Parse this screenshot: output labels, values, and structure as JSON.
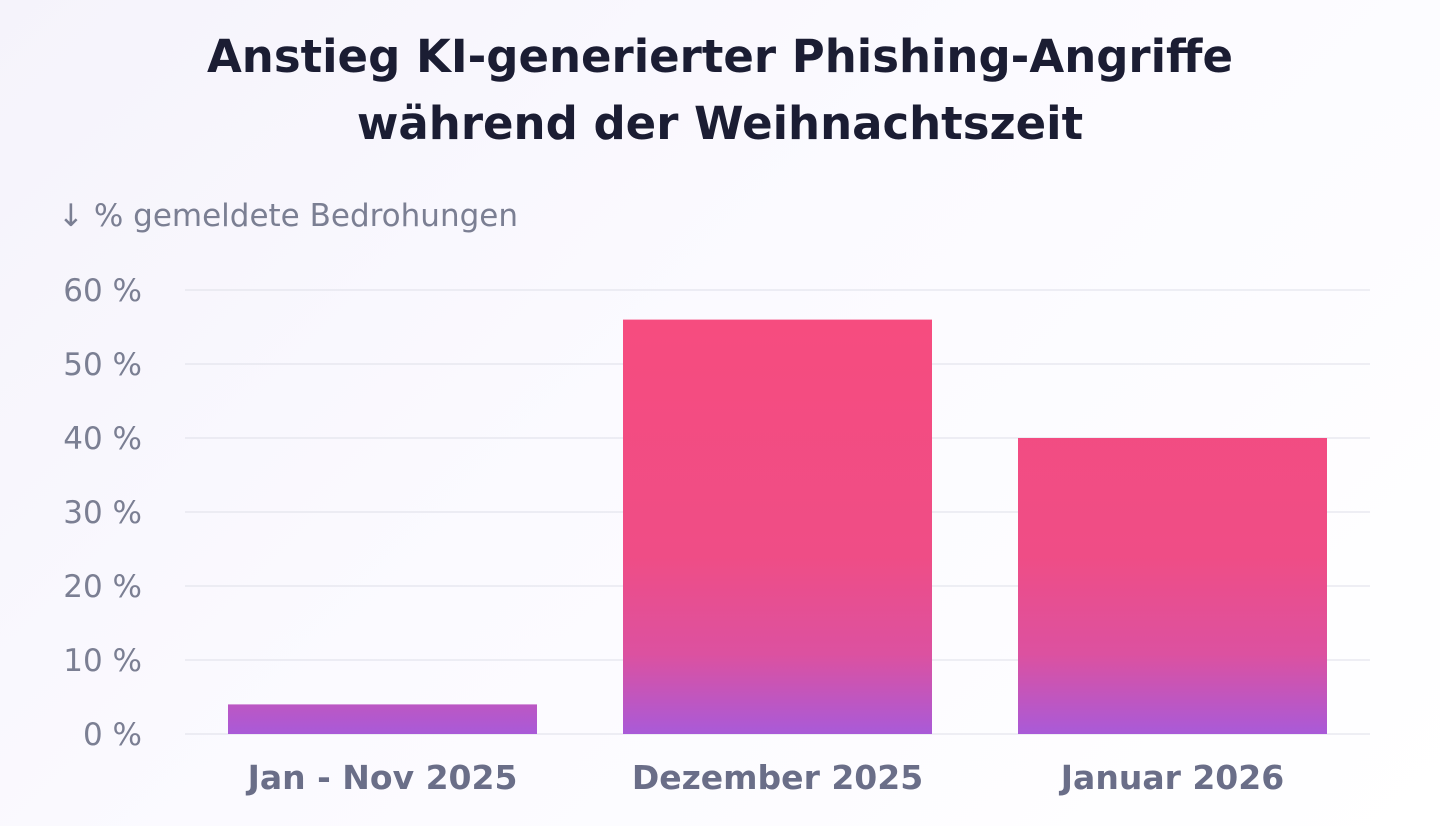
{
  "chart_data": {
    "type": "bar",
    "title": [
      "Anstieg KI-generierter Phishing-Angriffe",
      "während der Weihnachtszeit"
    ],
    "ylabel": "↓ % gemeldete Bedrohungen",
    "xlabel": "",
    "categories": [
      "Jan - Nov 2025",
      "Dezember 2025",
      "Januar 2026"
    ],
    "values": [
      4,
      56,
      40
    ],
    "ylim": [
      0,
      60
    ],
    "yticks": [
      0,
      10,
      20,
      30,
      40,
      50,
      60
    ],
    "ytick_labels": [
      "0 %",
      "10 %",
      "20 %",
      "30 %",
      "40 %",
      "50 %",
      "60 %"
    ],
    "grid": true,
    "colors": {
      "bar_top": "#f74c7e",
      "bar_bottom": "#a95ad8"
    }
  }
}
